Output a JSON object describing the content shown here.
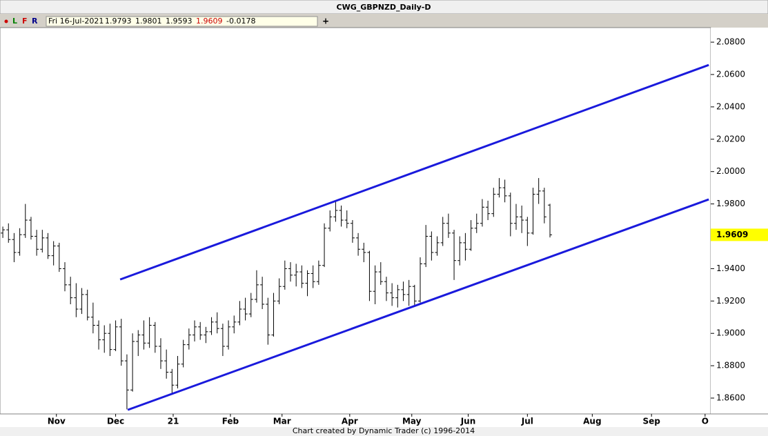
{
  "header": {
    "title": "CWG_GBPNZD_Daily-D",
    "toolbar": [
      "L",
      "F",
      "R"
    ],
    "info": [
      "Fri 16-Jul-2021",
      "1.9793",
      "1.9801",
      "1.9593",
      "1.9609",
      "-0.0178"
    ],
    "plus": "+"
  },
  "footer": "Chart created by Dynamic Trader  (c) 1996-2014",
  "chart_data": {
    "type": "ohlc",
    "xlim": [
      0,
      252
    ],
    "ylim": [
      1.8502,
      2.089
    ],
    "xticks": [
      {
        "value": 20,
        "label": "Nov"
      },
      {
        "value": 41,
        "label": "Dec"
      },
      {
        "value": 61.4,
        "label": "21"
      },
      {
        "value": 81.7,
        "label": "Feb"
      },
      {
        "value": 100,
        "label": "Mar"
      },
      {
        "value": 124,
        "label": "Apr"
      },
      {
        "value": 146,
        "label": "May"
      },
      {
        "value": 166,
        "label": "Jun"
      },
      {
        "value": 187,
        "label": "Jul"
      },
      {
        "value": 210,
        "label": "Aug"
      },
      {
        "value": 231,
        "label": "Sep"
      },
      {
        "value": 250,
        "label": "O"
      }
    ],
    "yticks": [
      {
        "value": 1.86,
        "label": "1.8600"
      },
      {
        "value": 1.88,
        "label": "1.8800"
      },
      {
        "value": 1.9,
        "label": "1.9000"
      },
      {
        "value": 1.92,
        "label": "1.9200"
      },
      {
        "value": 1.94,
        "label": "1.9400"
      },
      {
        "value": 1.96,
        "label": "1.9600"
      },
      {
        "value": 1.98,
        "label": "1.9800"
      },
      {
        "value": 2.0,
        "label": "2.0000"
      },
      {
        "value": 2.02,
        "label": "2.0200"
      },
      {
        "value": 2.04,
        "label": "2.0400"
      },
      {
        "value": 2.06,
        "label": "2.0600"
      },
      {
        "value": 2.08,
        "label": "2.0800"
      }
    ],
    "last_price": {
      "value": 1.9609,
      "label": "1.9609"
    },
    "bar_color": "#000000",
    "channel_color": "#1a1adc",
    "channel_lines": [
      {
        "x": [
          42.6,
          251.3
        ],
        "y": [
          1.9333,
          2.0659
        ]
      },
      {
        "x": [
          45.3,
          251.3
        ],
        "y": [
          1.8527,
          1.9828
        ]
      }
    ],
    "x": [
      1,
      3,
      5,
      7,
      9,
      11,
      13,
      15,
      17,
      19,
      21,
      23,
      25,
      27,
      29,
      31,
      33,
      35,
      37,
      39,
      41,
      43,
      45,
      47,
      49,
      51,
      53,
      55,
      57,
      59,
      61,
      63,
      65,
      67,
      69,
      71,
      73,
      75,
      77,
      79,
      81,
      83,
      85,
      87,
      89,
      91,
      93,
      95,
      97,
      99,
      101,
      103,
      105,
      107,
      109,
      111,
      113,
      115,
      117,
      119,
      121,
      123,
      125,
      127,
      129,
      131,
      133,
      135,
      137,
      139,
      141,
      143,
      145,
      147,
      149,
      151,
      153,
      155,
      157,
      159,
      161,
      163,
      165,
      167,
      169,
      171,
      173,
      175,
      177,
      179,
      181,
      183,
      185,
      187,
      189,
      191,
      193,
      195
    ],
    "ohlc": [
      [
        1.962,
        1.966,
        1.959,
        1.964
      ],
      [
        1.964,
        1.968,
        1.956,
        1.958
      ],
      [
        1.958,
        1.962,
        1.944,
        1.95
      ],
      [
        1.95,
        1.965,
        1.948,
        1.961
      ],
      [
        1.961,
        1.98,
        1.959,
        1.97
      ],
      [
        1.97,
        1.972,
        1.958,
        1.96
      ],
      [
        1.96,
        1.964,
        1.948,
        1.952
      ],
      [
        1.952,
        1.964,
        1.95,
        1.959
      ],
      [
        1.959,
        1.962,
        1.946,
        1.948
      ],
      [
        1.948,
        1.957,
        1.942,
        1.954
      ],
      [
        1.954,
        1.956,
        1.938,
        1.94
      ],
      [
        1.94,
        1.944,
        1.926,
        1.93
      ],
      [
        1.93,
        1.935,
        1.918,
        1.922
      ],
      [
        1.922,
        1.931,
        1.91,
        1.915
      ],
      [
        1.915,
        1.928,
        1.912,
        1.924
      ],
      [
        1.924,
        1.927,
        1.908,
        1.91
      ],
      [
        1.91,
        1.919,
        1.9,
        1.905
      ],
      [
        1.905,
        1.908,
        1.89,
        1.896
      ],
      [
        1.896,
        1.905,
        1.888,
        1.9
      ],
      [
        1.9,
        1.906,
        1.886,
        1.89
      ],
      [
        1.89,
        1.908,
        1.889,
        1.904
      ],
      [
        1.904,
        1.909,
        1.88,
        1.883
      ],
      [
        1.883,
        1.887,
        1.853,
        1.865
      ],
      [
        1.865,
        1.9,
        1.864,
        1.895
      ],
      [
        1.895,
        1.902,
        1.886,
        1.899
      ],
      [
        1.899,
        1.908,
        1.89,
        1.894
      ],
      [
        1.894,
        1.91,
        1.891,
        1.905
      ],
      [
        1.905,
        1.907,
        1.888,
        1.892
      ],
      [
        1.892,
        1.897,
        1.878,
        1.883
      ],
      [
        1.883,
        1.89,
        1.872,
        1.876
      ],
      [
        1.876,
        1.878,
        1.862,
        1.868
      ],
      [
        1.868,
        1.886,
        1.866,
        1.881
      ],
      [
        1.881,
        1.896,
        1.879,
        1.893
      ],
      [
        1.893,
        1.903,
        1.89,
        1.899
      ],
      [
        1.899,
        1.908,
        1.895,
        1.904
      ],
      [
        1.904,
        1.907,
        1.896,
        1.899
      ],
      [
        1.899,
        1.904,
        1.894,
        1.901
      ],
      [
        1.901,
        1.91,
        1.899,
        1.907
      ],
      [
        1.907,
        1.913,
        1.9,
        1.903
      ],
      [
        1.903,
        1.906,
        1.886,
        1.892
      ],
      [
        1.892,
        1.908,
        1.89,
        1.904
      ],
      [
        1.904,
        1.911,
        1.9,
        1.907
      ],
      [
        1.907,
        1.92,
        1.905,
        1.915
      ],
      [
        1.915,
        1.922,
        1.908,
        1.912
      ],
      [
        1.912,
        1.925,
        1.91,
        1.921
      ],
      [
        1.921,
        1.939,
        1.919,
        1.93
      ],
      [
        1.93,
        1.935,
        1.915,
        1.918
      ],
      [
        1.918,
        1.922,
        1.893,
        1.899
      ],
      [
        1.899,
        1.925,
        1.898,
        1.92
      ],
      [
        1.92,
        1.934,
        1.918,
        1.929
      ],
      [
        1.929,
        1.945,
        1.927,
        1.94
      ],
      [
        1.94,
        1.944,
        1.932,
        1.936
      ],
      [
        1.936,
        1.943,
        1.929,
        1.938
      ],
      [
        1.938,
        1.942,
        1.928,
        1.931
      ],
      [
        1.931,
        1.939,
        1.923,
        1.937
      ],
      [
        1.937,
        1.942,
        1.928,
        1.932
      ],
      [
        1.932,
        1.945,
        1.93,
        1.942
      ],
      [
        1.942,
        1.968,
        1.941,
        1.965
      ],
      [
        1.965,
        1.976,
        1.963,
        1.972
      ],
      [
        1.972,
        1.982,
        1.969,
        1.976
      ],
      [
        1.976,
        1.979,
        1.966,
        1.97
      ],
      [
        1.97,
        1.976,
        1.965,
        1.968
      ],
      [
        1.968,
        1.97,
        1.956,
        1.959
      ],
      [
        1.959,
        1.962,
        1.948,
        1.952
      ],
      [
        1.952,
        1.956,
        1.944,
        1.95
      ],
      [
        1.95,
        1.951,
        1.92,
        1.926
      ],
      [
        1.926,
        1.942,
        1.918,
        1.938
      ],
      [
        1.938,
        1.944,
        1.93,
        1.932
      ],
      [
        1.932,
        1.935,
        1.92,
        1.925
      ],
      [
        1.925,
        1.931,
        1.917,
        1.922
      ],
      [
        1.922,
        1.93,
        1.916,
        1.927
      ],
      [
        1.927,
        1.932,
        1.92,
        1.924
      ],
      [
        1.924,
        1.933,
        1.917,
        1.929
      ],
      [
        1.929,
        1.93,
        1.917,
        1.92
      ],
      [
        1.92,
        1.947,
        1.919,
        1.943
      ],
      [
        1.943,
        1.967,
        1.941,
        1.96
      ],
      [
        1.96,
        1.963,
        1.945,
        1.95
      ],
      [
        1.95,
        1.96,
        1.948,
        1.956
      ],
      [
        1.956,
        1.972,
        1.954,
        1.968
      ],
      [
        1.968,
        1.974,
        1.959,
        1.962
      ],
      [
        1.962,
        1.964,
        1.933,
        1.945
      ],
      [
        1.945,
        1.96,
        1.942,
        1.956
      ],
      [
        1.956,
        1.962,
        1.945,
        1.952
      ],
      [
        1.952,
        1.97,
        1.951,
        1.965
      ],
      [
        1.965,
        1.974,
        1.962,
        1.968
      ],
      [
        1.968,
        1.983,
        1.966,
        1.978
      ],
      [
        1.978,
        1.982,
        1.97,
        1.974
      ],
      [
        1.974,
        1.99,
        1.972,
        1.986
      ],
      [
        1.986,
        1.996,
        1.984,
        1.99
      ],
      [
        1.99,
        1.995,
        1.981,
        1.985
      ],
      [
        1.985,
        1.987,
        1.96,
        1.968
      ],
      [
        1.968,
        1.98,
        1.964,
        1.972
      ],
      [
        1.972,
        1.979,
        1.962,
        1.97
      ],
      [
        1.97,
        1.972,
        1.954,
        1.962
      ],
      [
        1.962,
        1.99,
        1.961,
        1.986
      ],
      [
        1.986,
        1.996,
        1.98,
        1.988
      ],
      [
        1.988,
        1.99,
        1.968,
        1.972
      ],
      [
        1.9793,
        1.9801,
        1.9593,
        1.9609
      ]
    ]
  }
}
